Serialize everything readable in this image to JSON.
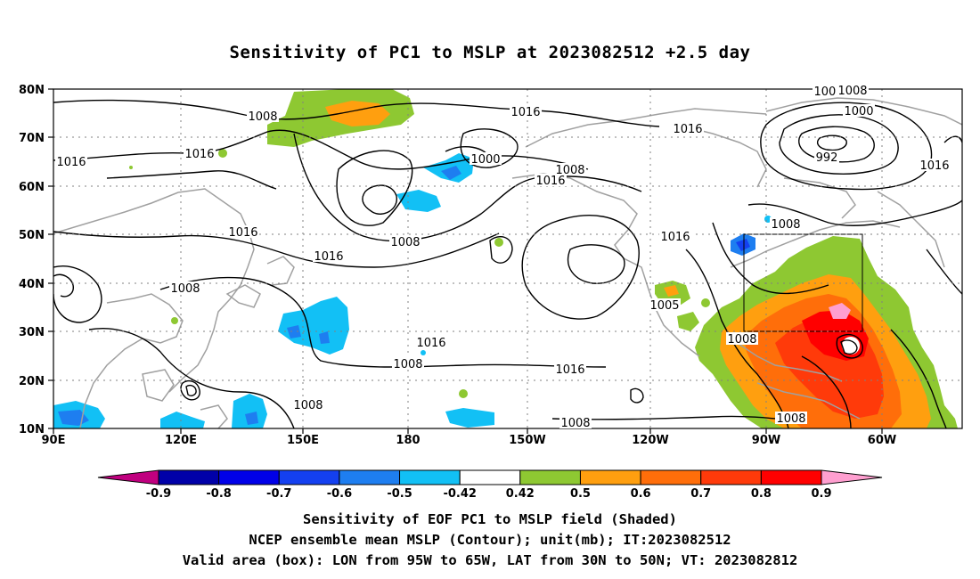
{
  "title": "Sensitivity of PC1 to MSLP at 2023082512 +2.5 day",
  "lat_labels": [
    "80N",
    "70N",
    "60N",
    "50N",
    "40N",
    "30N",
    "20N",
    "10N"
  ],
  "lon_labels": [
    "90E",
    "120E",
    "150E",
    "180",
    "150W",
    "120W",
    "90W",
    "60W"
  ],
  "contour_labels": [
    "1008",
    "1008",
    "1016",
    "1008",
    "1000",
    "992",
    "1016",
    "1016",
    "1008",
    "1000",
    "1016",
    "1008",
    "1016",
    "1008",
    "1016",
    "1008",
    "1016",
    "1008",
    "1016",
    "1016",
    "1016",
    "1005",
    "1008",
    "1008",
    "1008",
    "1008",
    "1016"
  ],
  "colorbar": {
    "labels": [
      "-0.9",
      "-0.8",
      "-0.7",
      "-0.6",
      "-0.5",
      "-0.42",
      "0.42",
      "0.5",
      "0.6",
      "0.7",
      "0.8",
      "0.9"
    ],
    "colors": [
      "#c0007f",
      "#0000a8",
      "#0000e8",
      "#1440f0",
      "#1e7ef0",
      "#12c0f5",
      "#ffffff",
      "#8ec832",
      "#ff9f0f",
      "#ff6e0a",
      "#ff3a0a",
      "#ff0000",
      "#ff9fd0"
    ]
  },
  "box": {
    "lon_from": "95W",
    "lon_to": "65W",
    "lat_from": "30N",
    "lat_to": "50N"
  },
  "footer": {
    "line1": "Sensitivity of EOF PC1 to MSLP field (Shaded)",
    "line2": "NCEP ensemble mean MSLP (Contour); unit(mb); IT:2023082512",
    "line3": "Valid area (box): LON from 95W to 65W, LAT from 30N to 50N; VT: 2023082812"
  }
}
